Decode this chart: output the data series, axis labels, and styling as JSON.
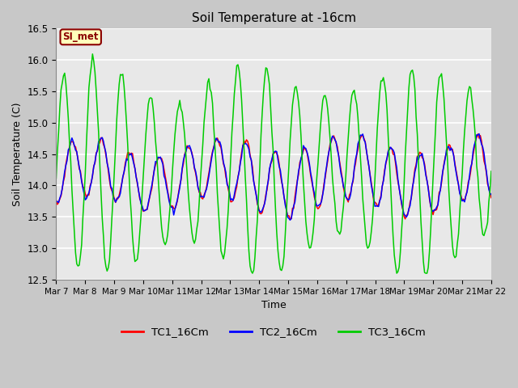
{
  "title": "Soil Temperature at -16cm",
  "xlabel": "Time",
  "ylabel": "Soil Temperature (C)",
  "ylim": [
    12.5,
    16.5
  ],
  "bg_color": "#c8c8c8",
  "plot_bg_color": "#e8e8e8",
  "grid_color": "white",
  "annotation_text": "SI_met",
  "annotation_bg": "#ffffbb",
  "annotation_border": "#8b0000",
  "annotation_text_color": "#8b0000",
  "xtick_labels": [
    "Mar 7",
    "Mar 8",
    "Mar 9",
    "Mar 10",
    "Mar 11",
    "Mar 12",
    "Mar 13",
    "Mar 14",
    "Mar 15",
    "Mar 16",
    "Mar 17",
    "Mar 18",
    "Mar 19",
    "Mar 20",
    "Mar 21",
    "Mar 22"
  ],
  "legend_labels": [
    "TC1_16Cm",
    "TC2_16Cm",
    "TC3_16Cm"
  ],
  "line_colors": [
    "red",
    "blue",
    "#00cc00"
  ],
  "yticks": [
    12.5,
    13.0,
    13.5,
    14.0,
    14.5,
    15.0,
    15.5,
    16.0,
    16.5
  ]
}
